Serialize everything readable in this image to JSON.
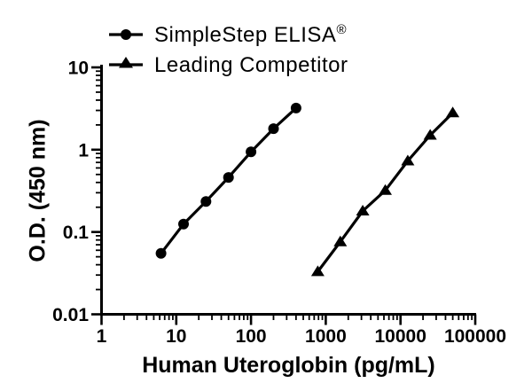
{
  "page": {
    "background": "#ffffff",
    "ink": "#000000"
  },
  "legend": {
    "items": [
      {
        "label": "SimpleStep ELISA",
        "registered_mark": "®",
        "marker": "circle"
      },
      {
        "label": "Leading Competitor",
        "registered_mark": "",
        "marker": "triangle"
      }
    ]
  },
  "chart_data": {
    "type": "line",
    "title": "",
    "xlabel": "Human Uteroglobin (pg/mL)",
    "ylabel": "O.D. (450 nm)",
    "x_scale": "log10",
    "y_scale": "log10",
    "xlim": [
      1,
      100000
    ],
    "ylim": [
      0.01,
      10
    ],
    "x_tick_values": [
      1,
      10,
      100,
      1000,
      10000,
      100000
    ],
    "x_tick_labels": [
      "1",
      "10",
      "100",
      "1000",
      "10000",
      "100000"
    ],
    "y_tick_values": [
      0.01,
      0.1,
      1,
      10
    ],
    "y_tick_labels": [
      "0.01",
      "0.1",
      "1",
      "10"
    ],
    "minor_ticks": true,
    "grid": false,
    "legend_position": "top-left-above-plot",
    "series": [
      {
        "name": "SimpleStep ELISA®",
        "marker": "circle",
        "color": "#000000",
        "x": [
          6.25,
          12.5,
          25,
          50,
          100,
          200,
          400
        ],
        "y": [
          0.055,
          0.125,
          0.235,
          0.46,
          0.94,
          1.8,
          3.2
        ]
      },
      {
        "name": "Leading Competitor",
        "marker": "triangle",
        "color": "#000000",
        "x": [
          781,
          1563,
          3125,
          6250,
          12500,
          25000,
          50000
        ],
        "y": [
          0.033,
          0.076,
          0.18,
          0.32,
          0.73,
          1.5,
          2.8
        ]
      }
    ]
  }
}
